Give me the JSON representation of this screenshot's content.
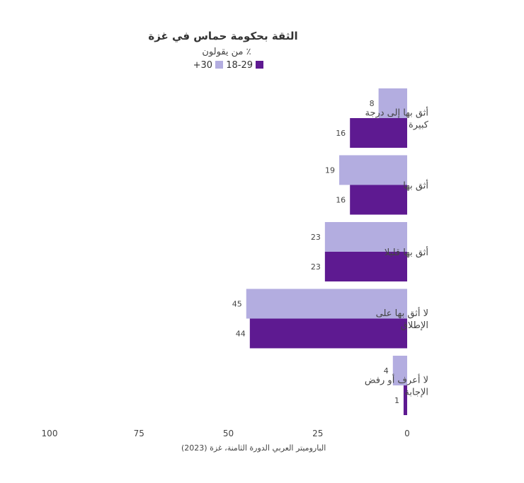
{
  "chart_data": {
    "type": "bar",
    "orientation": "horizontal",
    "direction": "rtl",
    "title": "الثقة بحكومة حماس في غزة",
    "subtitle": "٪ من يقولون",
    "categories": [
      [
        "أثق بها إلى درجة",
        "كبيرة"
      ],
      [
        "أثق بها"
      ],
      [
        "أثق بها قليلا"
      ],
      [
        "لا أثق بها على",
        "الإطلاق"
      ],
      [
        "لا أعرف أو رفض",
        "الإجابة"
      ]
    ],
    "series": [
      {
        "name": "+30",
        "color": "#b3ade0",
        "values": [
          8,
          19,
          23,
          45,
          4
        ]
      },
      {
        "name": "18-29",
        "color": "#5e1a91",
        "values": [
          16,
          16,
          23,
          44,
          1
        ]
      }
    ],
    "xlim": [
      0,
      100
    ],
    "ticks": [
      "100",
      "75",
      "50",
      "25",
      "0"
    ],
    "tick_values": [
      100,
      75,
      50,
      25,
      0
    ],
    "grid": false,
    "legend_position": "top-center",
    "source": "الباروميتر العربي الدورة الثامنة، غزة (2023)"
  }
}
